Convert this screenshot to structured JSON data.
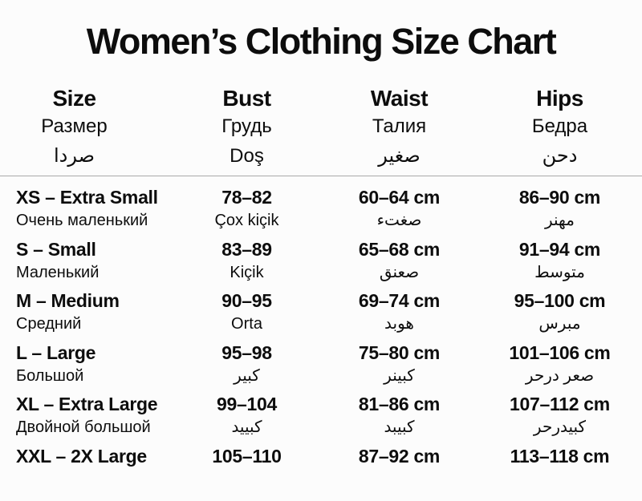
{
  "page": {
    "title": "Women’s Clothing Size Chart"
  },
  "table": {
    "headers": [
      {
        "en": "Size",
        "l2": "Размер",
        "l3": "صردا"
      },
      {
        "en": "Bust",
        "l2": "Грудь",
        "l3": "Doş"
      },
      {
        "en": "Waist",
        "l2": "Талия",
        "l3": "صغير"
      },
      {
        "en": "Hips",
        "l2": "Бедра",
        "l3": "دحن"
      }
    ],
    "rows": [
      {
        "size": "XS – Extra Small",
        "size_sub": "Очень маленький",
        "bust": "78–82",
        "bust_sub": "Çox kiçik",
        "waist": "60–64 cm",
        "waist_sub": "صغتء",
        "hips": "86–90 cm",
        "hips_sub": "مهنر"
      },
      {
        "size": "S – Small",
        "size_sub": "Маленький",
        "bust": "83–89",
        "bust_sub": "Kiçik",
        "waist": "65–68 cm",
        "waist_sub": "صعنق",
        "hips": "91–94 cm",
        "hips_sub": "متوسط"
      },
      {
        "size": "M – Medium",
        "size_sub": "Средний",
        "bust": "90–95",
        "bust_sub": "Orta",
        "waist": "69–74 cm",
        "waist_sub": "هوبد",
        "hips": "95–100 cm",
        "hips_sub": "مبرس"
      },
      {
        "size": "L – Large",
        "size_sub": "Большой",
        "bust": "95–98",
        "bust_sub": "كبير",
        "waist": "75–80 cm",
        "waist_sub": "كبينر",
        "hips": "101–106 cm",
        "hips_sub": "صعر درحر"
      },
      {
        "size": "XL – Extra Large",
        "size_sub": "Двойной большой",
        "bust": "99–104",
        "bust_sub": "كبييد",
        "waist": "81–86 cm",
        "waist_sub": "كبيبد",
        "hips": "107–112 cm",
        "hips_sub": "كبيدرحر"
      },
      {
        "size": "XXL – 2X Large",
        "bust": "105–110",
        "waist": "87–92 cm",
        "hips": "113–118 cm"
      }
    ]
  }
}
